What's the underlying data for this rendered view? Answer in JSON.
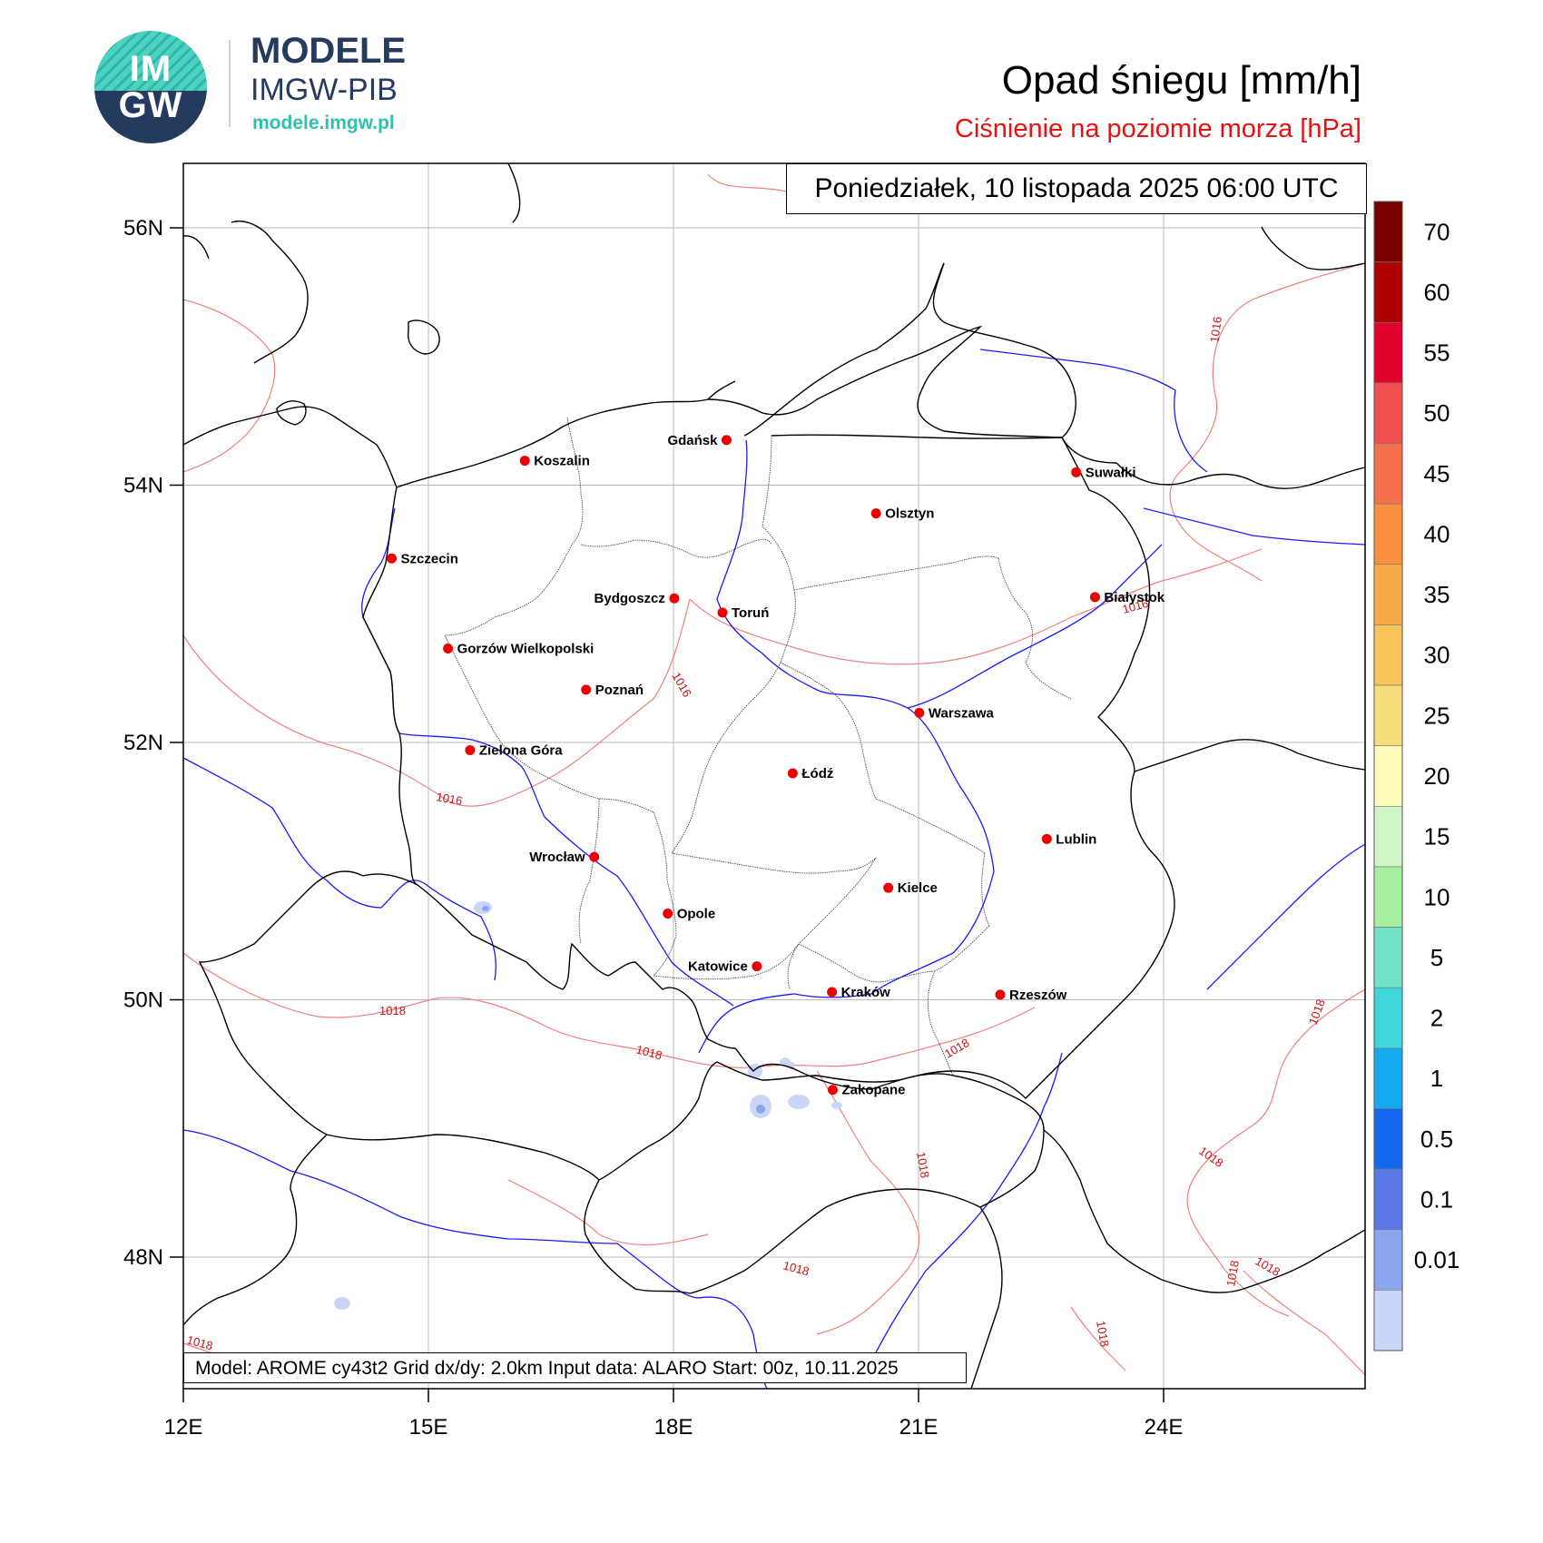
{
  "logo": {
    "circle_text": "IM\nGW",
    "name_line1": "MODELE",
    "name_line2": "IMGW-PIB",
    "url": "modele.imgw.pl"
  },
  "header": {
    "title": "Opad śniegu [mm/h]",
    "subtitle": "Ciśnienie na poziomie morza [hPa]",
    "subtitle_color": "#e81010"
  },
  "map": {
    "date_label": "Poniedziałek, 10 listopada 2025 06:00 UTC",
    "info_label": "Model: AROME cy43t2  Grid dx/dy: 2.0km  Input data: ALARO  Start: 00z, 10.11.2025",
    "lon_ticks": [
      "12E",
      "15E",
      "18E",
      "21E",
      "24E"
    ],
    "lat_ticks": [
      "56N",
      "54N",
      "52N",
      "50N",
      "48N"
    ],
    "cities": [
      {
        "name": "Gdańsk",
        "lon": 18.65,
        "lat": 54.35,
        "anchor": "end"
      },
      {
        "name": "Koszalin",
        "lon": 16.18,
        "lat": 54.19,
        "anchor": "start"
      },
      {
        "name": "Suwałki",
        "lon": 22.93,
        "lat": 54.1,
        "anchor": "start"
      },
      {
        "name": "Olsztyn",
        "lon": 20.48,
        "lat": 53.78,
        "anchor": "start"
      },
      {
        "name": "Szczecin",
        "lon": 14.55,
        "lat": 53.43,
        "anchor": "start"
      },
      {
        "name": "Bydgoszcz",
        "lon": 18.01,
        "lat": 53.12,
        "anchor": "end"
      },
      {
        "name": "Białystok",
        "lon": 23.16,
        "lat": 53.13,
        "anchor": "start"
      },
      {
        "name": "Toruń",
        "lon": 18.6,
        "lat": 53.01,
        "anchor": "start"
      },
      {
        "name": "Gorzów Wielkopolski",
        "lon": 15.24,
        "lat": 52.73,
        "anchor": "start"
      },
      {
        "name": "Poznań",
        "lon": 16.93,
        "lat": 52.41,
        "anchor": "start"
      },
      {
        "name": "Warszawa",
        "lon": 21.01,
        "lat": 52.23,
        "anchor": "start"
      },
      {
        "name": "Zielona Góra",
        "lon": 15.51,
        "lat": 51.94,
        "anchor": "start"
      },
      {
        "name": "Łódź",
        "lon": 19.46,
        "lat": 51.76,
        "anchor": "start"
      },
      {
        "name": "Lublin",
        "lon": 22.57,
        "lat": 51.25,
        "anchor": "start"
      },
      {
        "name": "Wrocław",
        "lon": 17.03,
        "lat": 51.11,
        "anchor": "end"
      },
      {
        "name": "Kielce",
        "lon": 20.63,
        "lat": 50.87,
        "anchor": "start"
      },
      {
        "name": "Opole",
        "lon": 17.93,
        "lat": 50.67,
        "anchor": "start"
      },
      {
        "name": "Katowice",
        "lon": 19.02,
        "lat": 50.26,
        "anchor": "end"
      },
      {
        "name": "Rzeszów",
        "lon": 22.0,
        "lat": 50.04,
        "anchor": "start"
      },
      {
        "name": "Kraków",
        "lon": 19.94,
        "lat": 50.06,
        "anchor": "start"
      },
      {
        "name": "Zakopane",
        "lon": 19.95,
        "lat": 49.3,
        "anchor": "start"
      }
    ],
    "isobar_labels": [
      "1016",
      "1016",
      "1016",
      "1016",
      "1018",
      "1018",
      "1018",
      "1018",
      "1018",
      "1018",
      "1018",
      "1018",
      "1018",
      "1018",
      "1018"
    ],
    "colors": {
      "border": "#000000",
      "river": "#1a1aff",
      "isobar": "#f08080",
      "city": "#ee0000",
      "grid": "#bbbbbb"
    }
  },
  "colorbar": {
    "labels": [
      "70",
      "60",
      "55",
      "50",
      "45",
      "40",
      "35",
      "30",
      "25",
      "20",
      "15",
      "10",
      "5",
      "2",
      "1",
      "0.5",
      "0.1",
      "0.01"
    ],
    "colors": [
      "#7a0000",
      "#b00000",
      "#e0002c",
      "#f05050",
      "#f5704a",
      "#f8903e",
      "#f9aa48",
      "#f8c358",
      "#f7de7a",
      "#fdf9b8",
      "#d0f5c8",
      "#a8eea0",
      "#72e2c4",
      "#3ed6d8",
      "#14aaf0",
      "#1468f0",
      "#5a78e6",
      "#8aa6ec",
      "#cad6f8"
    ]
  }
}
